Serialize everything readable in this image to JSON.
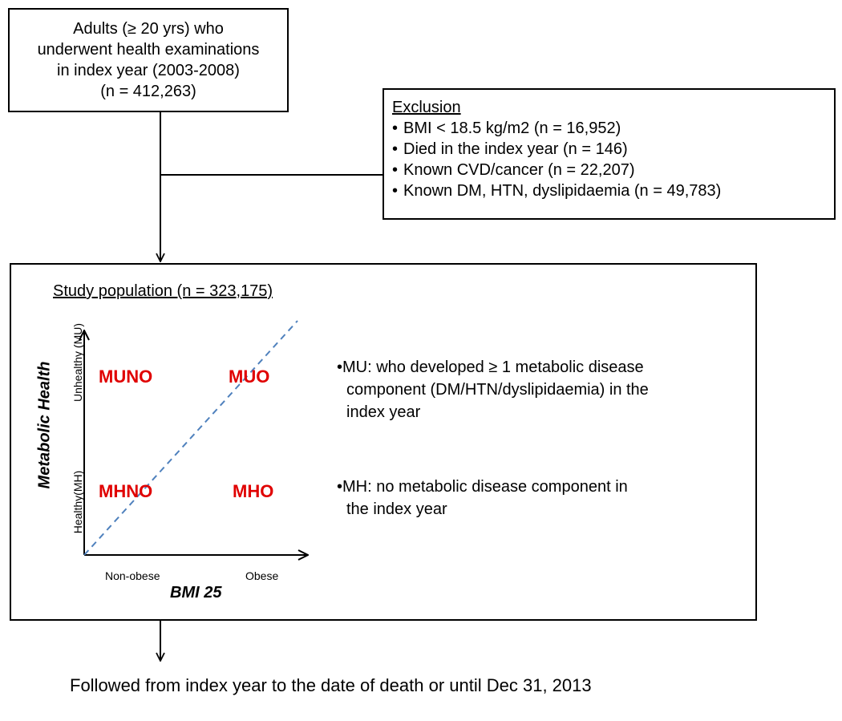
{
  "top_box": {
    "lines": [
      "Adults (≥ 20 yrs) who",
      "underwent health examinations",
      "in index year (2003-2008)",
      "(n = 412,263)"
    ]
  },
  "exclusion": {
    "title": "Exclusion",
    "bullet": "•",
    "items": [
      "BMI < 18.5 kg/m2 (n = 16,952)",
      "Died in the index year (n = 146)",
      "Known CVD/cancer (n = 22,207)",
      "Known DM, HTN, dyslipidaemia (n = 49,783)"
    ]
  },
  "study": {
    "title": "Study population (n = 323,175)",
    "y_axis_title": "Metabolic Health",
    "y_tick_top": "Unhealthy (MU)",
    "y_tick_bottom": "Healthy(MH)",
    "x_axis_title": "BMI 25",
    "x_tick_left": "Non-obese",
    "x_tick_right": "Obese",
    "quadrants": {
      "top_left": "MUNO",
      "top_right": "MUO",
      "bottom_left": "MHNO",
      "bottom_right": "MHO"
    },
    "definitions": {
      "mu": {
        "lines": [
          "MU: who developed ≥ 1 metabolic disease",
          "component (DM/HTN/dyslipidaemia) in the",
          "index year"
        ]
      },
      "mh": {
        "lines": [
          "MH: no metabolic disease component in",
          "the index year"
        ]
      }
    },
    "colors": {
      "quadrant_label": "#e00000",
      "diagonal": "#4f81bd"
    }
  },
  "footer": {
    "text": "Followed from index year to the date of death or until Dec 31, 2013"
  }
}
